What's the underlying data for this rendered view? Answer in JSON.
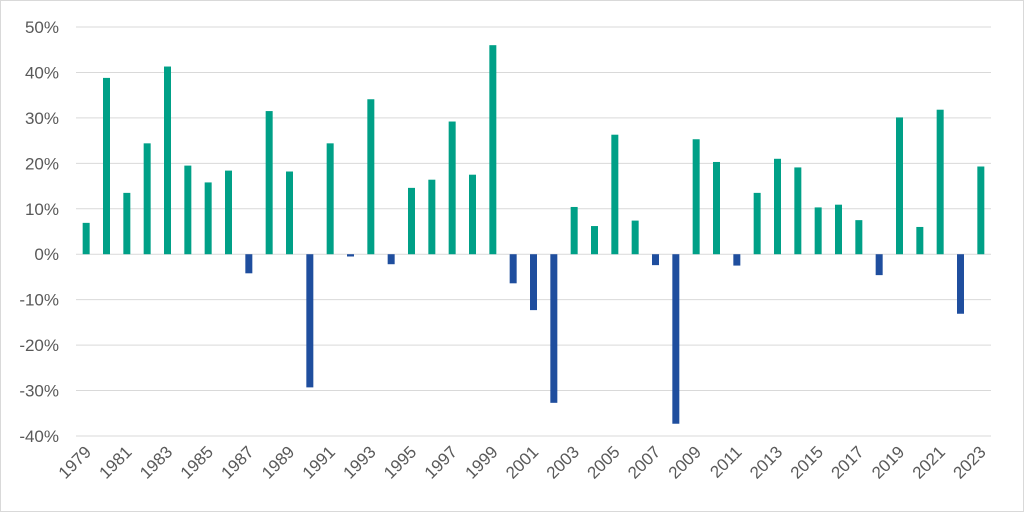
{
  "chart_data": {
    "type": "bar",
    "title": "",
    "xlabel": "",
    "ylabel": "",
    "ylim": [
      -40,
      50
    ],
    "y_ticks": [
      "50%",
      "40%",
      "30%",
      "20%",
      "10%",
      "0%",
      "-10%",
      "-20%",
      "-30%",
      "-40%"
    ],
    "y_tick_values": [
      50,
      40,
      30,
      20,
      10,
      0,
      -10,
      -20,
      -30,
      -40
    ],
    "grid": true,
    "legend": "none",
    "colors": {
      "positive": "#00a087",
      "negative": "#1f4e9e",
      "grid": "#d9d9d9",
      "text": "#595959"
    },
    "categories": [
      "1979",
      "1980",
      "1981",
      "1982",
      "1983",
      "1984",
      "1985",
      "1986",
      "1987",
      "1988",
      "1989",
      "1990",
      "1991",
      "1992",
      "1993",
      "1994",
      "1995",
      "1996",
      "1997",
      "1998",
      "1999",
      "2000",
      "2001",
      "2002",
      "2003",
      "2004",
      "2005",
      "2006",
      "2007",
      "2008",
      "2009",
      "2010",
      "2011",
      "2012",
      "2013",
      "2014",
      "2015",
      "2016",
      "2017",
      "2018",
      "2019",
      "2020",
      "2021",
      "2022",
      "2023"
    ],
    "x_tick_labels": [
      "1979",
      "1981",
      "1983",
      "1985",
      "1987",
      "1989",
      "1991",
      "1993",
      "1995",
      "1997",
      "1999",
      "2001",
      "2003",
      "2005",
      "2007",
      "2009",
      "2011",
      "2013",
      "2015",
      "2017",
      "2019",
      "2021",
      "2023"
    ],
    "values": [
      6.9,
      38.8,
      13.5,
      24.4,
      41.3,
      19.5,
      15.8,
      18.4,
      -4.2,
      31.5,
      18.2,
      -29.3,
      24.4,
      -0.5,
      34.1,
      -2.2,
      14.6,
      16.4,
      29.2,
      17.5,
      46.0,
      -6.4,
      -12.3,
      -32.7,
      10.4,
      6.2,
      26.3,
      7.4,
      -2.4,
      -37.3,
      25.3,
      20.3,
      -2.5,
      13.5,
      21.0,
      19.1,
      10.3,
      10.9,
      7.5,
      -4.6,
      30.1,
      6.0,
      31.8,
      -13.1,
      19.3
    ]
  }
}
